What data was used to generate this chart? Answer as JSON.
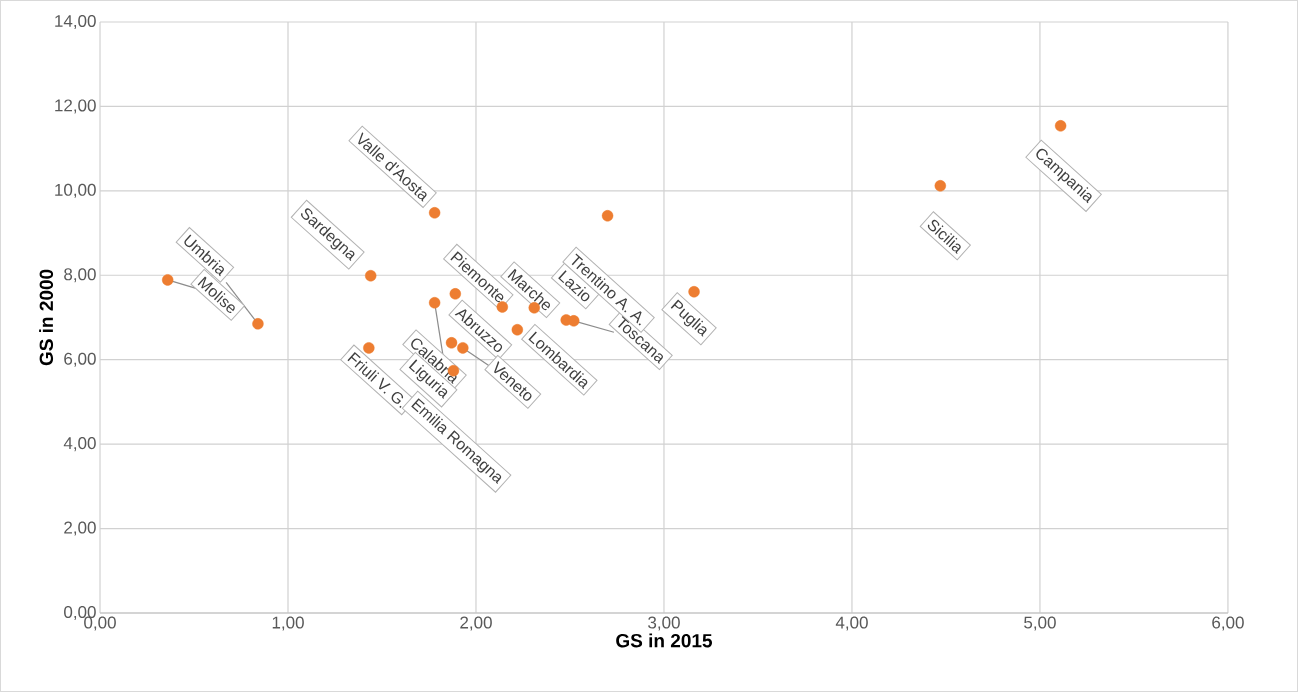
{
  "chart_data": {
    "type": "scatter",
    "xlabel": "GS in 2015",
    "ylabel": "GS in 2000",
    "color": "#ed7d31",
    "grid": true,
    "x": [
      0.84,
      0.36,
      1.44,
      1.78,
      1.43,
      1.78,
      1.89,
      2.14,
      2.31,
      2.22,
      1.87,
      1.93,
      1.88,
      2.48,
      2.52,
      2.7,
      3.16,
      4.47,
      5.11
    ],
    "values": [
      6.85,
      7.89,
      7.99,
      9.48,
      6.28,
      7.35,
      7.56,
      7.25,
      7.23,
      6.71,
      6.4,
      6.28,
      5.74,
      6.94,
      6.92,
      9.41,
      7.61,
      10.12,
      11.54
    ],
    "xlim": [
      0,
      6
    ],
    "ylim": [
      0,
      14
    ],
    "xticks": [
      {
        "value": 0,
        "label": "0,00"
      },
      {
        "value": 1,
        "label": "1,00"
      },
      {
        "value": 2,
        "label": "2,00"
      },
      {
        "value": 3,
        "label": "3,00"
      },
      {
        "value": 4,
        "label": "4,00"
      },
      {
        "value": 5,
        "label": "5,00"
      },
      {
        "value": 6,
        "label": "6,00"
      }
    ],
    "yticks": [
      {
        "value": 0,
        "label": "0,00"
      },
      {
        "value": 2,
        "label": "2,00"
      },
      {
        "value": 4,
        "label": "4,00"
      },
      {
        "value": 6,
        "label": "6,00"
      },
      {
        "value": 8,
        "label": "8,00"
      },
      {
        "value": 10,
        "label": "10,00"
      },
      {
        "value": 12,
        "label": "12,00"
      },
      {
        "value": 14,
        "label": "14,00"
      }
    ],
    "annotations": [
      {
        "text": "Umbria",
        "x": 0.84,
        "y": 6.85
      },
      {
        "text": "Molise",
        "x": 0.36,
        "y": 7.89
      },
      {
        "text": "Sardegna",
        "x": 1.44,
        "y": 7.99
      },
      {
        "text": "Valle d'Aosta",
        "x": 1.78,
        "y": 9.48
      },
      {
        "text": "Friuli V. G.",
        "x": 1.43,
        "y": 6.28
      },
      {
        "text": "Emilia Romagna",
        "x": 1.78,
        "y": 7.35
      },
      {
        "text": "Abruzzo",
        "x": 1.89,
        "y": 7.56
      },
      {
        "text": "Piemonte",
        "x": 2.14,
        "y": 7.25
      },
      {
        "text": "Marche",
        "x": 2.31,
        "y": 7.23
      },
      {
        "text": "Lombardia",
        "x": 2.22,
        "y": 6.71
      },
      {
        "text": "Calabria",
        "x": 1.87,
        "y": 6.4
      },
      {
        "text": "Veneto",
        "x": 1.93,
        "y": 6.28
      },
      {
        "text": "Liguria",
        "x": 1.88,
        "y": 5.74
      },
      {
        "text": "Lazio",
        "x": 2.48,
        "y": 6.94
      },
      {
        "text": "Toscana",
        "x": 2.52,
        "y": 6.92
      },
      {
        "text": "Trentino A. A.",
        "x": 2.7,
        "y": 9.41
      },
      {
        "text": "Puglia",
        "x": 3.16,
        "y": 7.61
      },
      {
        "text": "Sicilia",
        "x": 4.47,
        "y": 10.12
      },
      {
        "text": "Campania",
        "x": 5.11,
        "y": 11.54
      }
    ]
  }
}
